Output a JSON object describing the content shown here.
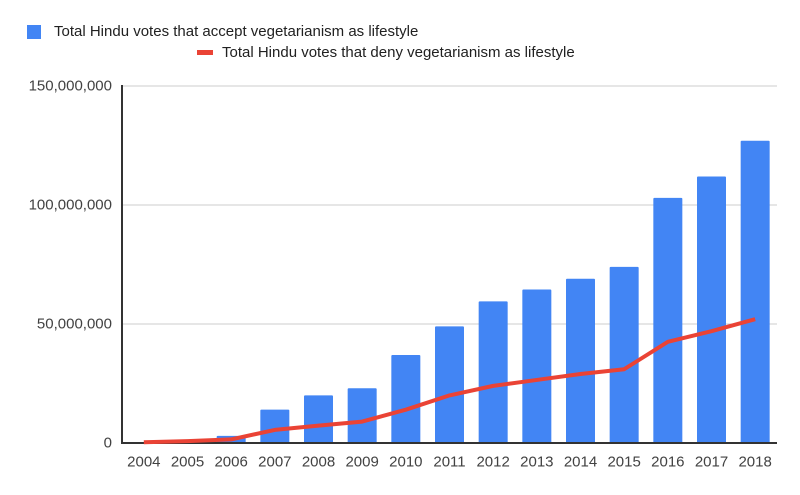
{
  "legend": {
    "position": "top",
    "items": [
      {
        "label": "Total Hindu votes that accept vegetarianism as lifestyle",
        "marker": "square",
        "color": "#4285F4"
      },
      {
        "label": "Total Hindu votes that deny vegetarianism as lifestyle",
        "marker": "dash",
        "color": "#EA4335"
      }
    ]
  },
  "chart_data": {
    "type": "combo",
    "title": "",
    "xlabel": "",
    "ylabel": "",
    "grid": true,
    "legend_position": "top",
    "categories": [
      "2004",
      "2005",
      "2006",
      "2007",
      "2008",
      "2009",
      "2010",
      "2011",
      "2012",
      "2013",
      "2014",
      "2015",
      "2016",
      "2017",
      "2018"
    ],
    "series": [
      {
        "name": "Total Hindu votes that accept vegetarianism as lifestyle",
        "type": "bar",
        "color": "#4285F4",
        "values": [
          0,
          0,
          3000000,
          14000000,
          20000000,
          23000000,
          37000000,
          49000000,
          59500000,
          64500000,
          69000000,
          74000000,
          103000000,
          112000000,
          127000000
        ]
      },
      {
        "name": "Total Hindu votes that deny vegetarianism as lifestyle",
        "type": "line",
        "color": "#EA4335",
        "values": [
          300000,
          800000,
          1500000,
          5500000,
          7300000,
          9000000,
          14000000,
          20000000,
          24000000,
          26500000,
          29000000,
          31000000,
          42500000,
          47000000,
          52000000
        ]
      }
    ],
    "ylim": [
      0,
      150000000
    ],
    "yticks": [
      {
        "value": 0,
        "label": "0"
      },
      {
        "value": 50000000,
        "label": "50,000,000"
      },
      {
        "value": 100000000,
        "label": "100,000,000"
      },
      {
        "value": 150000000,
        "label": "150,000,000"
      }
    ]
  },
  "colors": {
    "bar_series": "#4285F4",
    "line_series": "#EA4335",
    "axis": "#333333",
    "gridline": "#cccccc",
    "tick_text": "#424242",
    "legend_text": "#212121",
    "background": "#ffffff"
  }
}
